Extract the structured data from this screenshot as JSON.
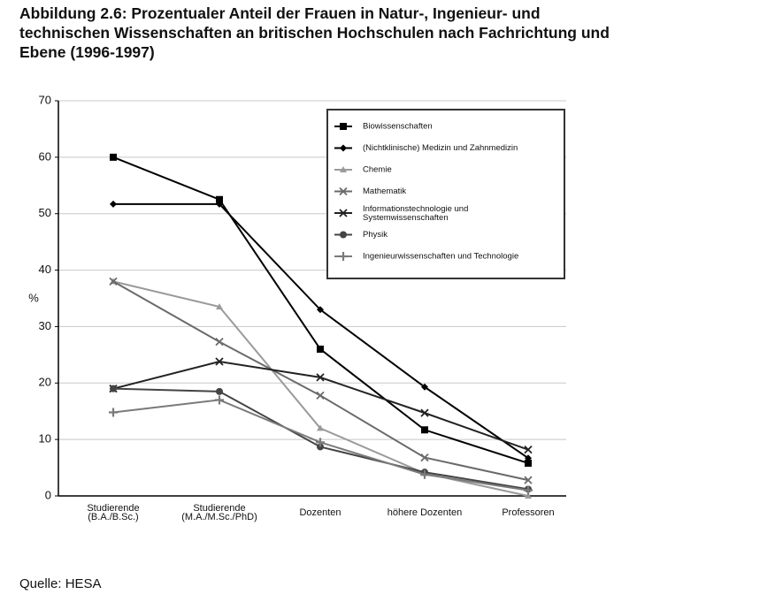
{
  "chart_data": {
    "type": "line",
    "title": "Abbildung 2.6: Prozentualer Anteil der Frauen in Natur-, Ingenieur- und\ntechnischen Wissenschaften an britischen Hochschulen nach Fachrichtung und\nEbene (1996-1997)",
    "y_label": "%",
    "source": "Quelle: HESA",
    "categories": [
      "Studierende\n(B.A./B.Sc.)",
      "Studierende\n(M.A./M.Sc./PhD)",
      "Dozenten",
      "höhere Dozenten",
      "Professoren"
    ],
    "ylim": [
      0,
      70
    ],
    "yticks": [
      0,
      10,
      20,
      30,
      40,
      50,
      60,
      70
    ],
    "grid": true,
    "legend": "upper right",
    "series": [
      {
        "name": "Biowissenschaften",
        "color": "#000000",
        "marker": "square",
        "values": [
          60,
          52.5,
          26,
          11.7,
          5.8
        ]
      },
      {
        "name": "(Nichtklinische) Medizin und Zahnmedizin",
        "color": "#000000",
        "marker": "diamond",
        "values": [
          51.7,
          51.7,
          33,
          19.3,
          6.7
        ]
      },
      {
        "name": "Chemie",
        "color": "#9a9a9a",
        "marker": "triangle",
        "values": [
          38,
          33.5,
          12,
          4,
          0
        ]
      },
      {
        "name": "Mathematik",
        "color": "#6a6a6a",
        "marker": "x",
        "values": [
          38,
          27.3,
          17.8,
          6.8,
          2.8
        ]
      },
      {
        "name": "Informationstechnologie und\nSystemwissenschaften",
        "color": "#222222",
        "marker": "x",
        "values": [
          19,
          23.8,
          21,
          14.7,
          8.2
        ]
      },
      {
        "name": "Physik",
        "color": "#444444",
        "marker": "circle",
        "values": [
          19,
          18.5,
          8.7,
          4.2,
          1.2
        ]
      },
      {
        "name": "Ingenieurwissenschaften und Technologie",
        "color": "#7a7a7a",
        "marker": "plus",
        "values": [
          14.8,
          17,
          9.5,
          3.8,
          1
        ]
      }
    ]
  }
}
